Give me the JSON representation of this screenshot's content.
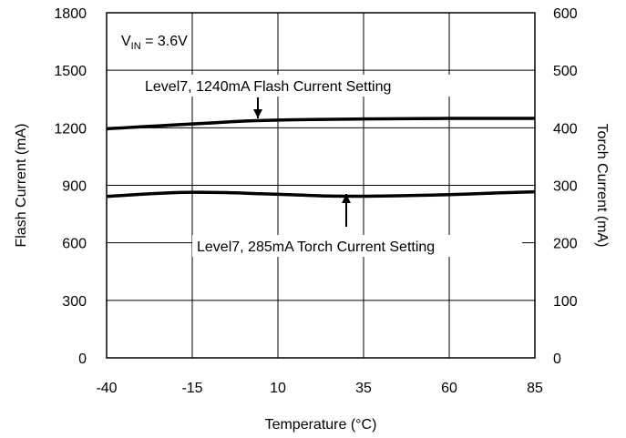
{
  "chart_data": {
    "type": "line",
    "xlabel": "Temperature (°C)",
    "ylabel_left": "Flash Current (mA)",
    "ylabel_right": "Torch Current (mA)",
    "xlim": [
      -40,
      85
    ],
    "ylim_left": [
      0,
      1800
    ],
    "ylim_right": [
      0,
      600
    ],
    "x_ticks": [
      "-40",
      "-15",
      "10",
      "35",
      "60",
      "85"
    ],
    "y_ticks_left": [
      "0",
      "300",
      "600",
      "900",
      "1200",
      "1500",
      "1800"
    ],
    "y_ticks_right": [
      "0",
      "100",
      "200",
      "300",
      "400",
      "500",
      "600"
    ],
    "grid": true,
    "series": [
      {
        "name": "Level7, 1240mA Flash Current Setting",
        "axis": "left",
        "x": [
          -40,
          -30,
          -20,
          -10,
          0,
          10,
          20,
          35,
          50,
          60,
          70,
          85
        ],
        "y": [
          1195,
          1205,
          1215,
          1225,
          1235,
          1240,
          1243,
          1246,
          1248,
          1249,
          1249,
          1249
        ]
      },
      {
        "name": "Level7, 285mA Torch Current Setting",
        "axis": "right",
        "x": [
          -40,
          -30,
          -20,
          -15,
          -5,
          5,
          15,
          25,
          35,
          45,
          60,
          75,
          85
        ],
        "y": [
          280.6,
          284.4,
          287.3,
          288.0,
          287.3,
          285.3,
          283.3,
          281.3,
          281.0,
          281.7,
          283.7,
          287.0,
          288.7
        ]
      }
    ],
    "annotations": {
      "vin_main": "V",
      "vin_sub": "IN",
      "vin_rest": " = 3.6V",
      "flash_label": "Level7, 1240mA Flash Current Setting",
      "torch_label": "Level7, 285mA Torch Current Setting"
    },
    "colors": {
      "line": "#000000",
      "grid": "#000000",
      "background": "#ffffff"
    }
  }
}
